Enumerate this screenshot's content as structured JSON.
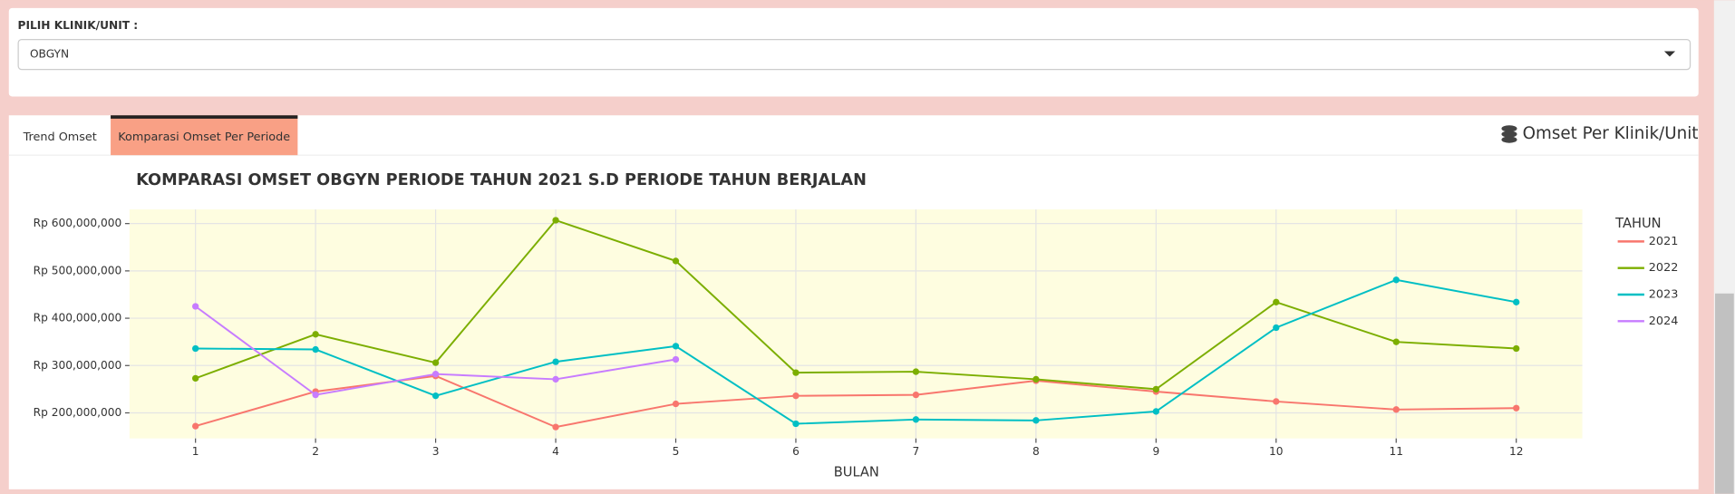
{
  "filter": {
    "label": "PILIH KLINIK/UNIT :",
    "selected": "OBGYN"
  },
  "tabs": [
    "Trend Omset",
    "Komparasi Omset Per Periode"
  ],
  "panel_title": "Omset Per Klinik/Unit",
  "chart_data": {
    "type": "line",
    "title": "KOMPARASI OMSET OBGYN PERIODE TAHUN 2021 S.D PERIODE TAHUN BERJALAN",
    "x_label": "BULAN",
    "legend_title": "TAHUN",
    "legend": "right",
    "x": [
      1,
      2,
      3,
      4,
      5,
      6,
      7,
      8,
      9,
      10,
      11,
      12
    ],
    "series": [
      {
        "name": "2021",
        "color": "#f8766d",
        "values": [
          172000000,
          245000000,
          278000000,
          170000000,
          219000000,
          236000000,
          238000000,
          268000000,
          245000000,
          224000000,
          207000000,
          210000000
        ]
      },
      {
        "name": "2022",
        "color": "#7cae00",
        "values": [
          273000000,
          366000000,
          306000000,
          607000000,
          521000000,
          285000000,
          287000000,
          271000000,
          250000000,
          434000000,
          350000000,
          336000000
        ]
      },
      {
        "name": "2023",
        "color": "#00bfc4",
        "values": [
          336000000,
          334000000,
          236000000,
          308000000,
          341000000,
          177000000,
          186000000,
          184000000,
          203000000,
          380000000,
          481000000,
          434000000
        ]
      },
      {
        "name": "2024",
        "color": "#c77cff",
        "values": [
          425000000,
          238000000,
          282000000,
          271000000,
          313000000,
          null,
          null,
          null,
          null,
          null,
          null,
          null
        ]
      }
    ],
    "xlim": [
      0.45,
      12.55
    ],
    "xticks": [
      1,
      2,
      3,
      4,
      5,
      6,
      7,
      8,
      9,
      10,
      11,
      12
    ],
    "ylim": [
      146000000,
      630000000
    ],
    "yticks": [
      {
        "value": 200000000,
        "label": "Rp 200,000,000"
      },
      {
        "value": 300000000,
        "label": "Rp 300,000,000"
      },
      {
        "value": 400000000,
        "label": "Rp 400,000,000"
      },
      {
        "value": 500000000,
        "label": "Rp 500,000,000"
      },
      {
        "value": 600000000,
        "label": "Rp 600,000,000"
      }
    ],
    "grid": true,
    "plot_background": "#fefde0"
  }
}
